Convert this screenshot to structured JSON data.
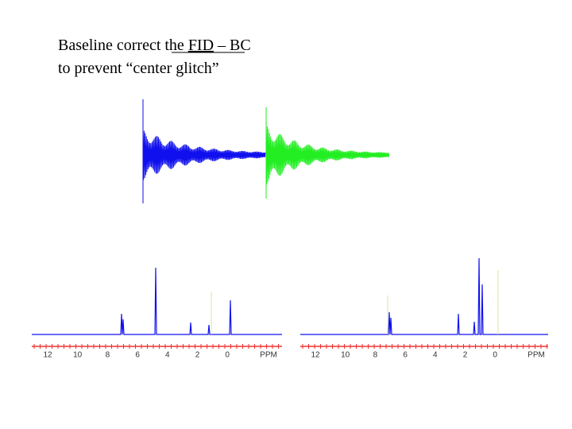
{
  "title": {
    "line1_before": "Baseline correct the ",
    "line1_underlined": "FID",
    "line1_after": " – BC",
    "line2": "to prevent “center glitch”"
  },
  "spectra": [
    {
      "axis_labels": [
        "12",
        "10",
        "8",
        "6",
        "4",
        "2",
        "0"
      ],
      "unit": "PPM"
    },
    {
      "axis_labels": [
        "12",
        "10",
        "8",
        "6",
        "4",
        "2",
        "0"
      ],
      "unit": "PPM"
    }
  ]
}
